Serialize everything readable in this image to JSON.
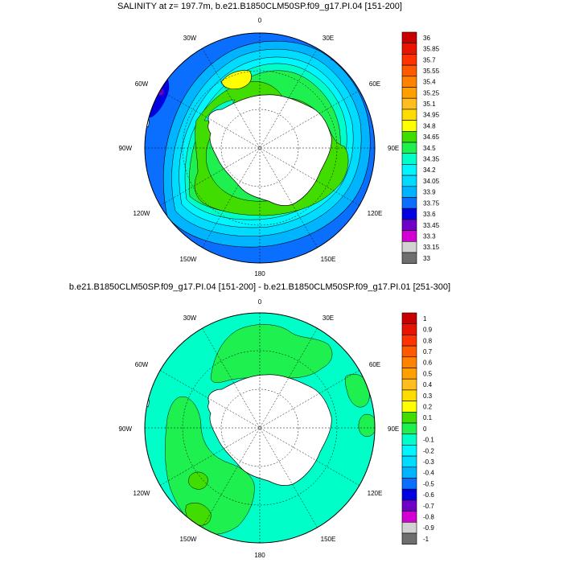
{
  "maps": [
    {
      "title": "SALINITY at z= 197.7m, b.e21.B1850CLM50SP.f09_g17.PI.04 [151-200]",
      "lon_labels": [
        "0",
        "30E",
        "60E",
        "90E",
        "120E",
        "150E",
        "180",
        "150W",
        "120W",
        "90W",
        "60W",
        "30W"
      ],
      "colorbar": {
        "labels": [
          "36",
          "35.85",
          "35.7",
          "35.55",
          "35.4",
          "35.25",
          "35.1",
          "34.95",
          "34.8",
          "34.65",
          "34.5",
          "34.35",
          "34.2",
          "34.05",
          "33.9",
          "33.75",
          "33.6",
          "33.45",
          "33.3",
          "33.15",
          "33"
        ],
        "colors": [
          "#c80000",
          "#e61400",
          "#ff3200",
          "#ff5a00",
          "#ff8200",
          "#ffa000",
          "#ffbe1e",
          "#ffdc00",
          "#ffff00",
          "#41dc00",
          "#1ef050",
          "#00ffc8",
          "#00f5ff",
          "#00dcff",
          "#00b4ff",
          "#0a6eff",
          "#0000e1",
          "#6e00c8",
          "#d200d2",
          "#d2d2d2",
          "#6e6e6e"
        ]
      }
    },
    {
      "title": "b.e21.B1850CLM50SP.f09_g17.PI.04 [151-200] - b.e21.B1850CLM50SP.f09_g17.PI.01 [251-300]",
      "lon_labels": [
        "0",
        "30E",
        "60E",
        "90E",
        "120E",
        "150E",
        "180",
        "150W",
        "120W",
        "90W",
        "60W",
        "30W"
      ],
      "colorbar": {
        "labels": [
          "1",
          "0.9",
          "0.8",
          "0.7",
          "0.6",
          "0.5",
          "0.4",
          "0.3",
          "0.2",
          "0.1",
          "0",
          "-0.1",
          "-0.2",
          "-0.3",
          "-0.4",
          "-0.5",
          "-0.6",
          "-0.7",
          "-0.8",
          "-0.9",
          "-1"
        ],
        "colors": [
          "#c80000",
          "#e61400",
          "#ff3200",
          "#ff5a00",
          "#ff8200",
          "#ffa000",
          "#ffbe1e",
          "#ffdc00",
          "#ffff00",
          "#41dc00",
          "#1ef050",
          "#00ffc8",
          "#00f5ff",
          "#00dcff",
          "#00b4ff",
          "#0a6eff",
          "#0000e1",
          "#6e00c8",
          "#d200d2",
          "#d2d2d2",
          "#6e6e6e"
        ]
      }
    }
  ]
}
